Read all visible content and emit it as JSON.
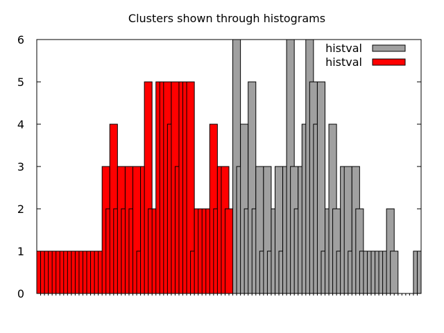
{
  "chart_data": {
    "type": "bar",
    "title": "Clusters shown through histograms",
    "xlabel": "",
    "ylabel": "",
    "ylim": [
      0,
      6
    ],
    "yticks": [
      "0",
      "1",
      "2",
      "3",
      "4",
      "5",
      "6"
    ],
    "xlim": [
      0,
      100
    ],
    "bin_width": 2,
    "grid": false,
    "legend_position": "top-right",
    "series": [
      {
        "name": "histval",
        "color": "#a0a0a0",
        "x": [
          50,
          51,
          52,
          53,
          54,
          55,
          56,
          57,
          58,
          59,
          60,
          61,
          62,
          63,
          64,
          65,
          66,
          67,
          68,
          69,
          70,
          71,
          72,
          73,
          74,
          75,
          76,
          77,
          78,
          79,
          80,
          81,
          82,
          83,
          84,
          85,
          86,
          87,
          88,
          89,
          90,
          91,
          92,
          93,
          94,
          95,
          96,
          97,
          98,
          99
        ],
        "values": [
          1,
          6,
          3,
          4,
          2,
          5,
          2,
          3,
          1,
          3,
          1,
          2,
          3,
          1,
          3,
          6,
          3,
          2,
          3,
          4,
          6,
          5,
          4,
          5,
          1,
          2,
          4,
          2,
          1,
          3,
          3,
          1,
          3,
          2,
          1,
          1,
          1,
          1,
          1,
          1,
          1,
          2,
          1,
          0,
          0,
          0,
          0,
          0,
          1,
          1
        ]
      },
      {
        "name": "histval",
        "color": "#ff0000",
        "x": [
          0,
          1,
          2,
          3,
          4,
          5,
          6,
          7,
          8,
          9,
          10,
          11,
          12,
          13,
          14,
          15,
          16,
          17,
          18,
          19,
          20,
          21,
          22,
          23,
          24,
          25,
          26,
          27,
          28,
          29,
          30,
          31,
          32,
          33,
          34,
          35,
          36,
          37,
          38,
          39,
          40,
          41,
          42,
          43,
          44,
          45,
          46,
          47,
          48,
          49
        ],
        "values": [
          1,
          1,
          1,
          1,
          1,
          1,
          1,
          1,
          1,
          1,
          1,
          1,
          1,
          1,
          1,
          1,
          1,
          3,
          2,
          4,
          2,
          3,
          2,
          3,
          2,
          3,
          1,
          3,
          5,
          2,
          2,
          5,
          5,
          5,
          4,
          5,
          3,
          5,
          5,
          5,
          1,
          2,
          2,
          2,
          2,
          4,
          2,
          3,
          3,
          2
        ]
      }
    ]
  }
}
